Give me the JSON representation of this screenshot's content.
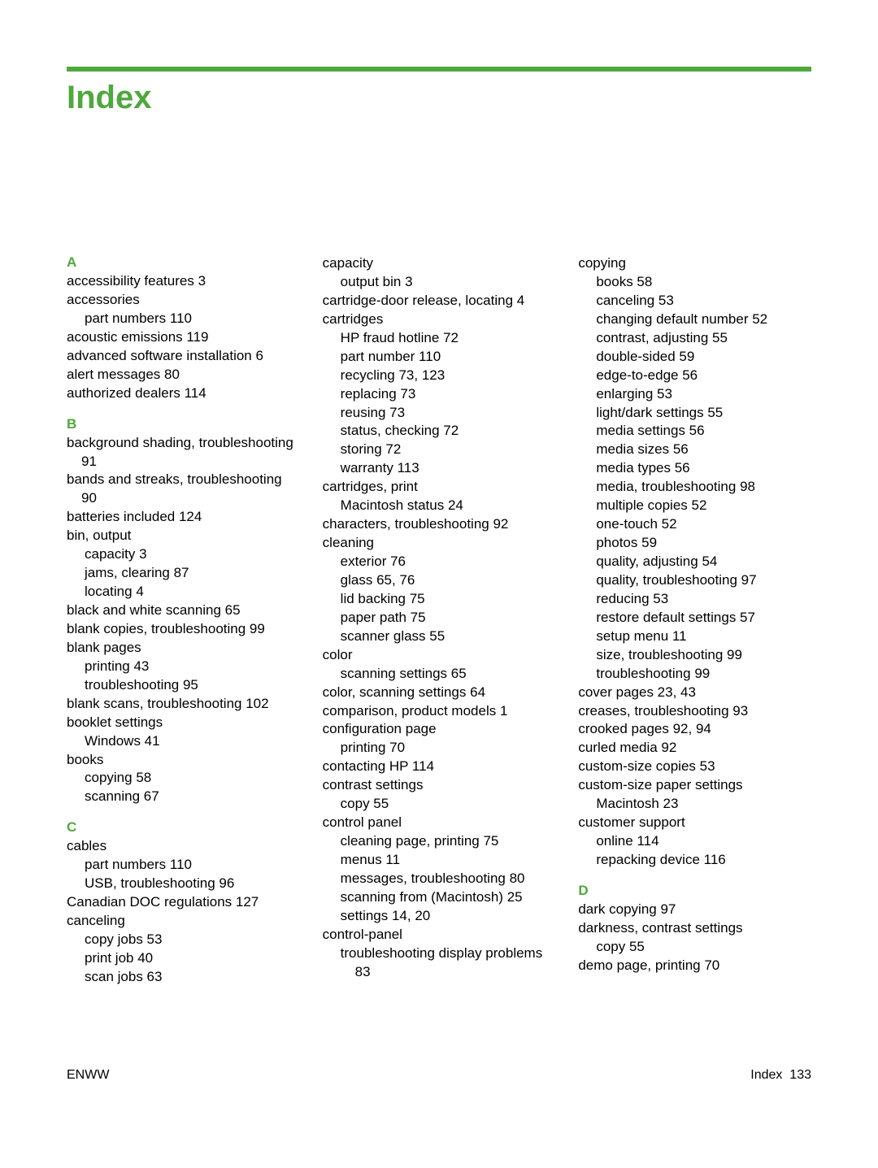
{
  "title": "Index",
  "accent_color": "#4fa83d",
  "footer": {
    "left": "ENWW",
    "right_label": "Index",
    "right_page": "133"
  },
  "columns": [
    [
      {
        "type": "letter",
        "text": "A"
      },
      {
        "type": "entry",
        "text": "accessibility features   3"
      },
      {
        "type": "entry",
        "text": "accessories"
      },
      {
        "type": "sub",
        "text": "part numbers   110"
      },
      {
        "type": "entry",
        "text": "acoustic emissions   119"
      },
      {
        "type": "entry",
        "text": "advanced software installation   6"
      },
      {
        "type": "entry",
        "text": "alert messages   80"
      },
      {
        "type": "entry",
        "text": "authorized dealers   114"
      },
      {
        "type": "letter",
        "text": "B"
      },
      {
        "type": "entry",
        "text": "background shading, troubleshooting   91"
      },
      {
        "type": "entry",
        "text": "bands and streaks, troubleshooting   90"
      },
      {
        "type": "entry",
        "text": "batteries included   124"
      },
      {
        "type": "entry",
        "text": "bin, output"
      },
      {
        "type": "sub",
        "text": "capacity   3"
      },
      {
        "type": "sub",
        "text": "jams, clearing   87"
      },
      {
        "type": "sub",
        "text": "locating   4"
      },
      {
        "type": "entry",
        "text": "black and white scanning   65"
      },
      {
        "type": "entry",
        "text": "blank copies, troubleshooting   99"
      },
      {
        "type": "entry",
        "text": "blank pages"
      },
      {
        "type": "sub",
        "text": "printing   43"
      },
      {
        "type": "sub",
        "text": "troubleshooting   95"
      },
      {
        "type": "entry",
        "text": "blank scans, troubleshooting   102"
      },
      {
        "type": "entry",
        "text": "booklet settings"
      },
      {
        "type": "sub",
        "text": "Windows   41"
      },
      {
        "type": "entry",
        "text": "books"
      },
      {
        "type": "sub",
        "text": "copying   58"
      },
      {
        "type": "sub",
        "text": "scanning   67"
      },
      {
        "type": "letter",
        "text": "C"
      },
      {
        "type": "entry",
        "text": "cables"
      },
      {
        "type": "sub",
        "text": "part numbers   110"
      },
      {
        "type": "sub",
        "text": "USB, troubleshooting   96"
      },
      {
        "type": "entry",
        "text": "Canadian DOC regulations   127"
      },
      {
        "type": "entry",
        "text": "canceling"
      },
      {
        "type": "sub",
        "text": "copy jobs   53"
      },
      {
        "type": "sub",
        "text": "print job   40"
      },
      {
        "type": "sub",
        "text": "scan jobs   63"
      }
    ],
    [
      {
        "type": "entry",
        "text": "capacity"
      },
      {
        "type": "sub",
        "text": "output bin   3"
      },
      {
        "type": "entry",
        "text": "cartridge-door release, locating   4"
      },
      {
        "type": "entry",
        "text": "cartridges"
      },
      {
        "type": "sub",
        "text": "HP fraud hotline   72"
      },
      {
        "type": "sub",
        "text": "part number   110"
      },
      {
        "type": "sub",
        "text": "recycling   73, 123"
      },
      {
        "type": "sub",
        "text": "replacing   73"
      },
      {
        "type": "sub",
        "text": "reusing   73"
      },
      {
        "type": "sub",
        "text": "status, checking   72"
      },
      {
        "type": "sub",
        "text": "storing   72"
      },
      {
        "type": "sub",
        "text": "warranty   113"
      },
      {
        "type": "entry",
        "text": "cartridges, print"
      },
      {
        "type": "sub",
        "text": "Macintosh status   24"
      },
      {
        "type": "entry",
        "text": "characters, troubleshooting   92"
      },
      {
        "type": "entry",
        "text": "cleaning"
      },
      {
        "type": "sub",
        "text": "exterior   76"
      },
      {
        "type": "sub",
        "text": "glass   65, 76"
      },
      {
        "type": "sub",
        "text": "lid backing   75"
      },
      {
        "type": "sub",
        "text": "paper path   75"
      },
      {
        "type": "sub",
        "text": "scanner glass   55"
      },
      {
        "type": "entry",
        "text": "color"
      },
      {
        "type": "sub",
        "text": "scanning settings   65"
      },
      {
        "type": "entry",
        "text": "color, scanning settings   64"
      },
      {
        "type": "entry",
        "text": "comparison, product models   1"
      },
      {
        "type": "entry",
        "text": "configuration page"
      },
      {
        "type": "sub",
        "text": "printing   70"
      },
      {
        "type": "entry",
        "text": "contacting HP   114"
      },
      {
        "type": "entry",
        "text": "contrast settings"
      },
      {
        "type": "sub",
        "text": "copy   55"
      },
      {
        "type": "entry",
        "text": "control panel"
      },
      {
        "type": "sub",
        "text": "cleaning page, printing   75"
      },
      {
        "type": "sub",
        "text": "menus   11"
      },
      {
        "type": "sub",
        "text": "messages, troubleshooting   80"
      },
      {
        "type": "sub",
        "text": "scanning from (Macintosh)   25"
      },
      {
        "type": "sub",
        "text": "settings   14, 20"
      },
      {
        "type": "entry",
        "text": "control-panel"
      },
      {
        "type": "sub",
        "text": "troubleshooting display problems   83"
      }
    ],
    [
      {
        "type": "entry",
        "text": "copying"
      },
      {
        "type": "sub",
        "text": "books   58"
      },
      {
        "type": "sub",
        "text": "canceling   53"
      },
      {
        "type": "sub",
        "text": "changing default number   52"
      },
      {
        "type": "sub",
        "text": "contrast, adjusting   55"
      },
      {
        "type": "sub",
        "text": "double-sided   59"
      },
      {
        "type": "sub",
        "text": "edge-to-edge   56"
      },
      {
        "type": "sub",
        "text": "enlarging   53"
      },
      {
        "type": "sub",
        "text": "light/dark settings   55"
      },
      {
        "type": "sub",
        "text": "media settings   56"
      },
      {
        "type": "sub",
        "text": "media sizes   56"
      },
      {
        "type": "sub",
        "text": "media types   56"
      },
      {
        "type": "sub",
        "text": "media, troubleshooting   98"
      },
      {
        "type": "sub",
        "text": "multiple copies   52"
      },
      {
        "type": "sub",
        "text": "one-touch   52"
      },
      {
        "type": "sub",
        "text": "photos   59"
      },
      {
        "type": "sub",
        "text": "quality, adjusting   54"
      },
      {
        "type": "sub",
        "text": "quality, troubleshooting   97"
      },
      {
        "type": "sub",
        "text": "reducing   53"
      },
      {
        "type": "sub",
        "text": "restore default settings   57"
      },
      {
        "type": "sub",
        "text": "setup menu   11"
      },
      {
        "type": "sub",
        "text": "size, troubleshooting   99"
      },
      {
        "type": "sub",
        "text": "troubleshooting   99"
      },
      {
        "type": "entry",
        "text": "cover pages   23, 43"
      },
      {
        "type": "entry",
        "text": "creases, troubleshooting   93"
      },
      {
        "type": "entry",
        "text": "crooked pages   92, 94"
      },
      {
        "type": "entry",
        "text": "curled media   92"
      },
      {
        "type": "entry",
        "text": "custom-size copies   53"
      },
      {
        "type": "entry",
        "text": "custom-size paper settings"
      },
      {
        "type": "sub",
        "text": "Macintosh   23"
      },
      {
        "type": "entry",
        "text": "customer support"
      },
      {
        "type": "sub",
        "text": "online   114"
      },
      {
        "type": "sub",
        "text": "repacking device   116"
      },
      {
        "type": "letter",
        "text": "D"
      },
      {
        "type": "entry",
        "text": "dark copying   97"
      },
      {
        "type": "entry",
        "text": "darkness, contrast settings"
      },
      {
        "type": "sub",
        "text": "copy   55"
      },
      {
        "type": "entry",
        "text": "demo page, printing   70"
      }
    ]
  ]
}
